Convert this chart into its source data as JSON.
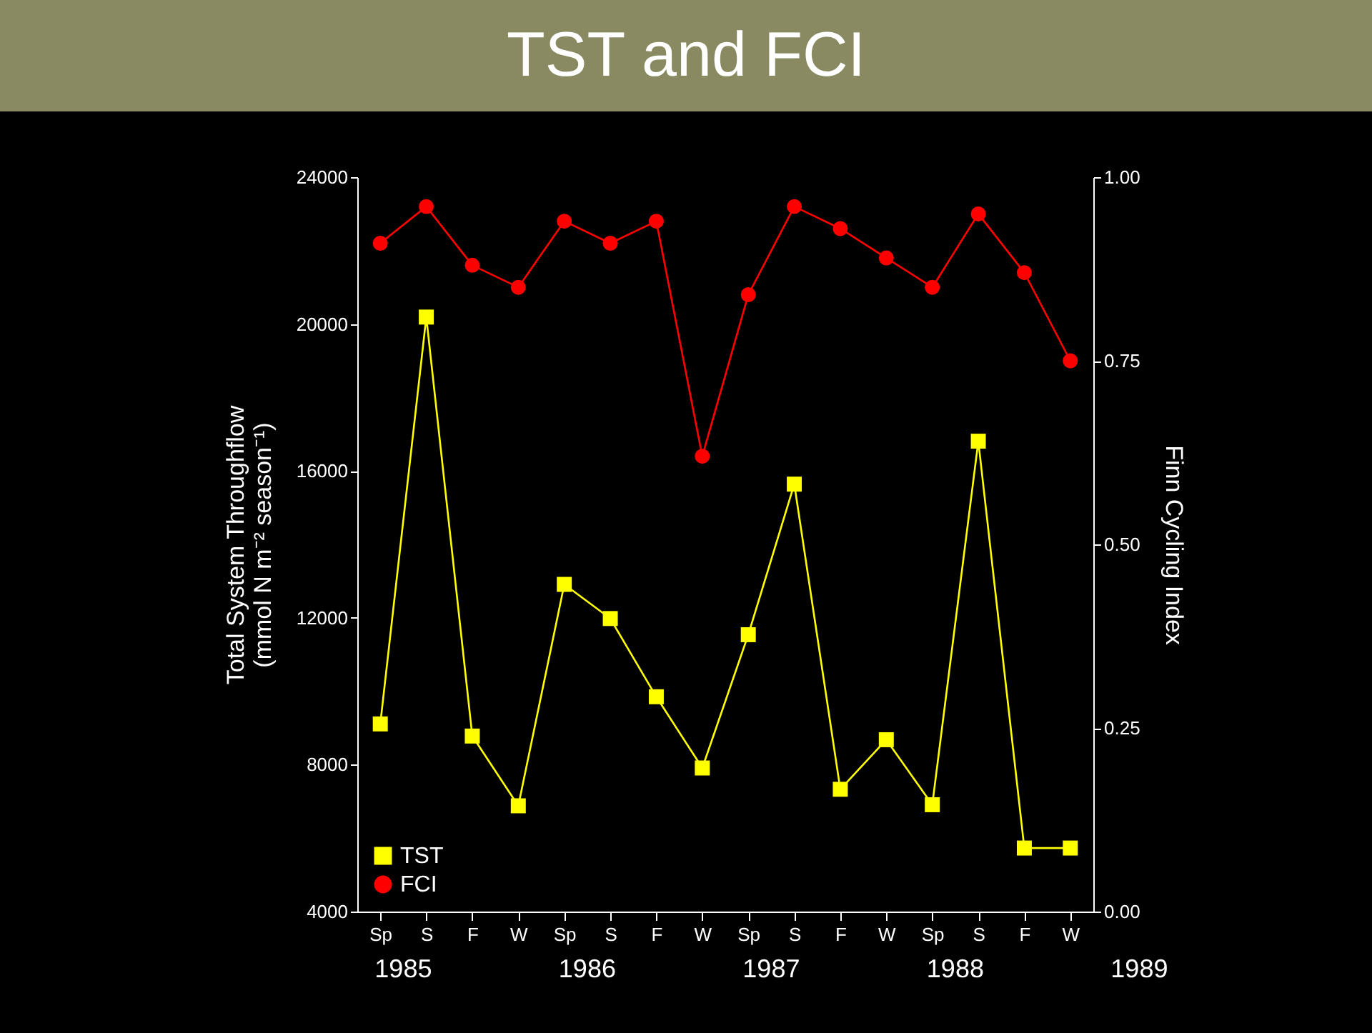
{
  "chart_data": {
    "type": "line",
    "title": "TST and FCI",
    "ylabel": "Total System Throughflow\n(mmol N m⁻² season⁻¹)",
    "y2label": "Finn Cycling Index",
    "categories": [
      "Sp",
      "S",
      "F",
      "W",
      "Sp",
      "S",
      "F",
      "W",
      "Sp",
      "S",
      "F",
      "W",
      "Sp",
      "S",
      "F",
      "W"
    ],
    "annotations": [
      "1985",
      "1986",
      "1987",
      "1988",
      "1989"
    ],
    "ylim": [
      4000,
      24000
    ],
    "yticks": [
      4000,
      8000,
      12000,
      16000,
      20000,
      24000
    ],
    "y2lim": [
      0,
      1
    ],
    "y2ticks": [
      {
        "value": 0,
        "label": "0.00"
      },
      {
        "value": 0.25,
        "label": "0.25"
      },
      {
        "value": 0.5,
        "label": "0.50"
      },
      {
        "value": 0.75,
        "label": "0.75"
      },
      {
        "value": 1,
        "label": "1.00"
      }
    ],
    "grid": false,
    "legend": "bottom left",
    "line_style": "solid",
    "series": [
      {
        "name": "TST",
        "color": "#ffff00",
        "marker": "square",
        "values": [
          9110,
          20190,
          8780,
          6880,
          12910,
          11980,
          9850,
          7910,
          11540,
          15640,
          7330,
          8680,
          6910,
          16810,
          5730,
          5730
        ]
      },
      {
        "name": "FCI",
        "color": "#ff0000",
        "marker": "circle",
        "axis": "y2",
        "values": [
          0.91,
          0.96,
          0.88,
          0.85,
          0.94,
          0.91,
          0.94,
          0.62,
          0.84,
          0.96,
          0.93,
          0.89,
          0.85,
          0.95,
          0.87,
          0.75
        ]
      }
    ]
  }
}
